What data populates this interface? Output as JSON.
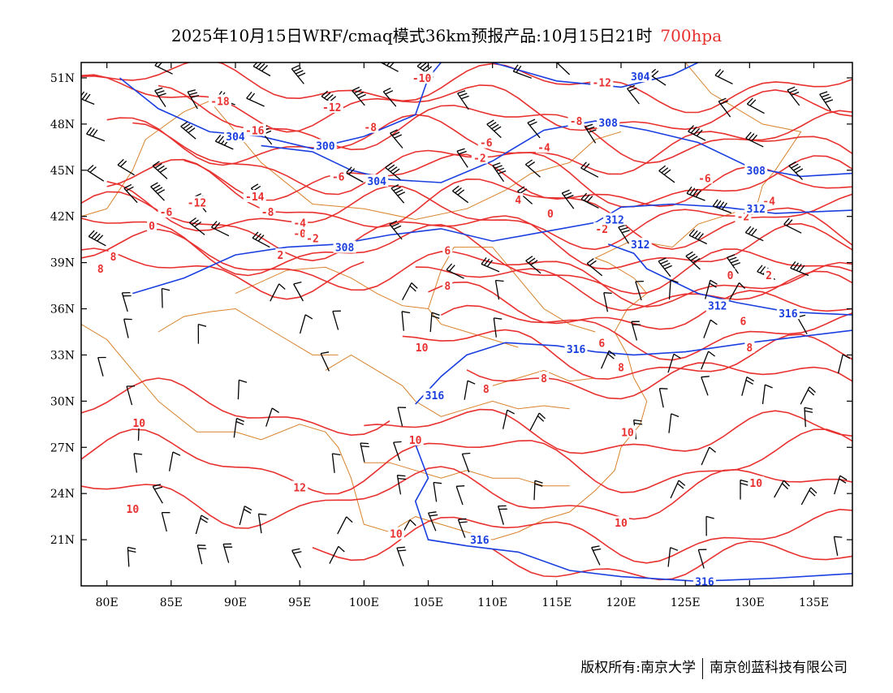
{
  "title": {
    "main": "2025年10月15日WRF/cmaq模式36km预报产品:10月15日21时",
    "level": "700hpa",
    "level_color": "#e8312f"
  },
  "map": {
    "lon_range": [
      78,
      138
    ],
    "lat_range": [
      18,
      52
    ],
    "lon_ticks": [
      {
        "lon": 80,
        "label": "80E"
      },
      {
        "lon": 85,
        "label": "85E"
      },
      {
        "lon": 90,
        "label": "90E"
      },
      {
        "lon": 95,
        "label": "95E"
      },
      {
        "lon": 100,
        "label": "100E"
      },
      {
        "lon": 105,
        "label": "105E"
      },
      {
        "lon": 110,
        "label": "110E"
      },
      {
        "lon": 115,
        "label": "115E"
      },
      {
        "lon": 120,
        "label": "120E"
      },
      {
        "lon": 125,
        "label": "125E"
      },
      {
        "lon": 130,
        "label": "130E"
      },
      {
        "lon": 135,
        "label": "135E"
      }
    ],
    "lat_ticks": [
      {
        "lat": 21,
        "label": "21N"
      },
      {
        "lat": 24,
        "label": "24N"
      },
      {
        "lat": 27,
        "label": "27N"
      },
      {
        "lat": 30,
        "label": "30N"
      },
      {
        "lat": 33,
        "label": "33N"
      },
      {
        "lat": 36,
        "label": "36N"
      },
      {
        "lat": 39,
        "label": "39N"
      },
      {
        "lat": 42,
        "label": "42N"
      },
      {
        "lat": 45,
        "label": "45N"
      },
      {
        "lat": 48,
        "label": "48N"
      },
      {
        "lat": 51,
        "label": "51N"
      }
    ],
    "colors": {
      "temperature": "#e8312f",
      "geopotential": "#1a3fe0",
      "boundary": "#d9822b",
      "wind": "#000000"
    },
    "temperature_labels": [
      {
        "lon": 104.5,
        "lat": 51.0,
        "text": "-10"
      },
      {
        "lon": 118.5,
        "lat": 50.7,
        "text": "-12"
      },
      {
        "lon": 88.8,
        "lat": 49.5,
        "text": "-18"
      },
      {
        "lon": 97.5,
        "lat": 49.1,
        "text": "-12"
      },
      {
        "lon": 91.5,
        "lat": 47.6,
        "text": "-16"
      },
      {
        "lon": 100.5,
        "lat": 47.8,
        "text": "-8"
      },
      {
        "lon": 109.5,
        "lat": 46.8,
        "text": "-6"
      },
      {
        "lon": 114.0,
        "lat": 46.5,
        "text": "-4"
      },
      {
        "lon": 109.0,
        "lat": 45.8,
        "text": "-2"
      },
      {
        "lon": 116.5,
        "lat": 48.2,
        "text": "-8"
      },
      {
        "lon": 98.0,
        "lat": 44.6,
        "text": "-6"
      },
      {
        "lon": 91.5,
        "lat": 43.3,
        "text": "-14"
      },
      {
        "lon": 87.0,
        "lat": 42.9,
        "text": "-12"
      },
      {
        "lon": 84.6,
        "lat": 42.3,
        "text": "-6"
      },
      {
        "lon": 92.5,
        "lat": 42.3,
        "text": "-8"
      },
      {
        "lon": 95.0,
        "lat": 41.6,
        "text": "-4"
      },
      {
        "lon": 95.0,
        "lat": 40.9,
        "text": "-0"
      },
      {
        "lon": 96.0,
        "lat": 40.6,
        "text": "-2"
      },
      {
        "lon": 83.5,
        "lat": 41.4,
        "text": "0"
      },
      {
        "lon": 80.5,
        "lat": 39.4,
        "text": "8"
      },
      {
        "lon": 79.5,
        "lat": 38.6,
        "text": "8"
      },
      {
        "lon": 93.5,
        "lat": 39.5,
        "text": "2"
      },
      {
        "lon": 112.0,
        "lat": 43.1,
        "text": "4"
      },
      {
        "lon": 114.5,
        "lat": 42.2,
        "text": "0"
      },
      {
        "lon": 106.5,
        "lat": 39.8,
        "text": "6"
      },
      {
        "lon": 118.5,
        "lat": 41.2,
        "text": "-2"
      },
      {
        "lon": 126.5,
        "lat": 44.5,
        "text": "-6"
      },
      {
        "lon": 131.5,
        "lat": 43.0,
        "text": "-4"
      },
      {
        "lon": 129.5,
        "lat": 42.0,
        "text": "-2"
      },
      {
        "lon": 128.5,
        "lat": 38.2,
        "text": "0"
      },
      {
        "lon": 131.5,
        "lat": 38.2,
        "text": "2"
      },
      {
        "lon": 129.5,
        "lat": 35.2,
        "text": "6"
      },
      {
        "lon": 130.0,
        "lat": 33.5,
        "text": "8"
      },
      {
        "lon": 106.5,
        "lat": 37.5,
        "text": "8"
      },
      {
        "lon": 104.5,
        "lat": 33.5,
        "text": "10"
      },
      {
        "lon": 109.5,
        "lat": 30.8,
        "text": "8"
      },
      {
        "lon": 114.0,
        "lat": 31.5,
        "text": "8"
      },
      {
        "lon": 118.5,
        "lat": 33.8,
        "text": "6"
      },
      {
        "lon": 120.0,
        "lat": 32.2,
        "text": "8"
      },
      {
        "lon": 82.5,
        "lat": 28.6,
        "text": "10"
      },
      {
        "lon": 82.0,
        "lat": 23.0,
        "text": "10"
      },
      {
        "lon": 95.0,
        "lat": 24.4,
        "text": "12"
      },
      {
        "lon": 104.0,
        "lat": 27.5,
        "text": "10"
      },
      {
        "lon": 120.5,
        "lat": 28.0,
        "text": "10"
      },
      {
        "lon": 120.0,
        "lat": 22.1,
        "text": "10"
      },
      {
        "lon": 130.5,
        "lat": 24.7,
        "text": "10"
      },
      {
        "lon": 102.5,
        "lat": 21.4,
        "text": "10"
      }
    ],
    "geopotential_labels": [
      {
        "lon": 90.0,
        "lat": 47.2,
        "text": "304"
      },
      {
        "lon": 97.0,
        "lat": 46.6,
        "text": "300"
      },
      {
        "lon": 101.0,
        "lat": 44.3,
        "text": "304"
      },
      {
        "lon": 98.5,
        "lat": 40.0,
        "text": "308"
      },
      {
        "lon": 119.0,
        "lat": 48.1,
        "text": "308"
      },
      {
        "lon": 121.5,
        "lat": 51.1,
        "text": "304"
      },
      {
        "lon": 130.5,
        "lat": 45.0,
        "text": "308"
      },
      {
        "lon": 130.5,
        "lat": 42.5,
        "text": "312"
      },
      {
        "lon": 119.5,
        "lat": 41.8,
        "text": "312"
      },
      {
        "lon": 121.5,
        "lat": 40.2,
        "text": "312"
      },
      {
        "lon": 127.5,
        "lat": 36.2,
        "text": "312"
      },
      {
        "lon": 133.0,
        "lat": 35.7,
        "text": "316"
      },
      {
        "lon": 116.5,
        "lat": 33.4,
        "text": "316"
      },
      {
        "lon": 105.5,
        "lat": 30.4,
        "text": "316"
      },
      {
        "lon": 109.0,
        "lat": 21.0,
        "text": "316"
      },
      {
        "lon": 126.5,
        "lat": 18.3,
        "text": "316"
      }
    ]
  },
  "footer": {
    "left": "版权所有:南京大学",
    "right": "南京创蓝科技有限公司"
  }
}
